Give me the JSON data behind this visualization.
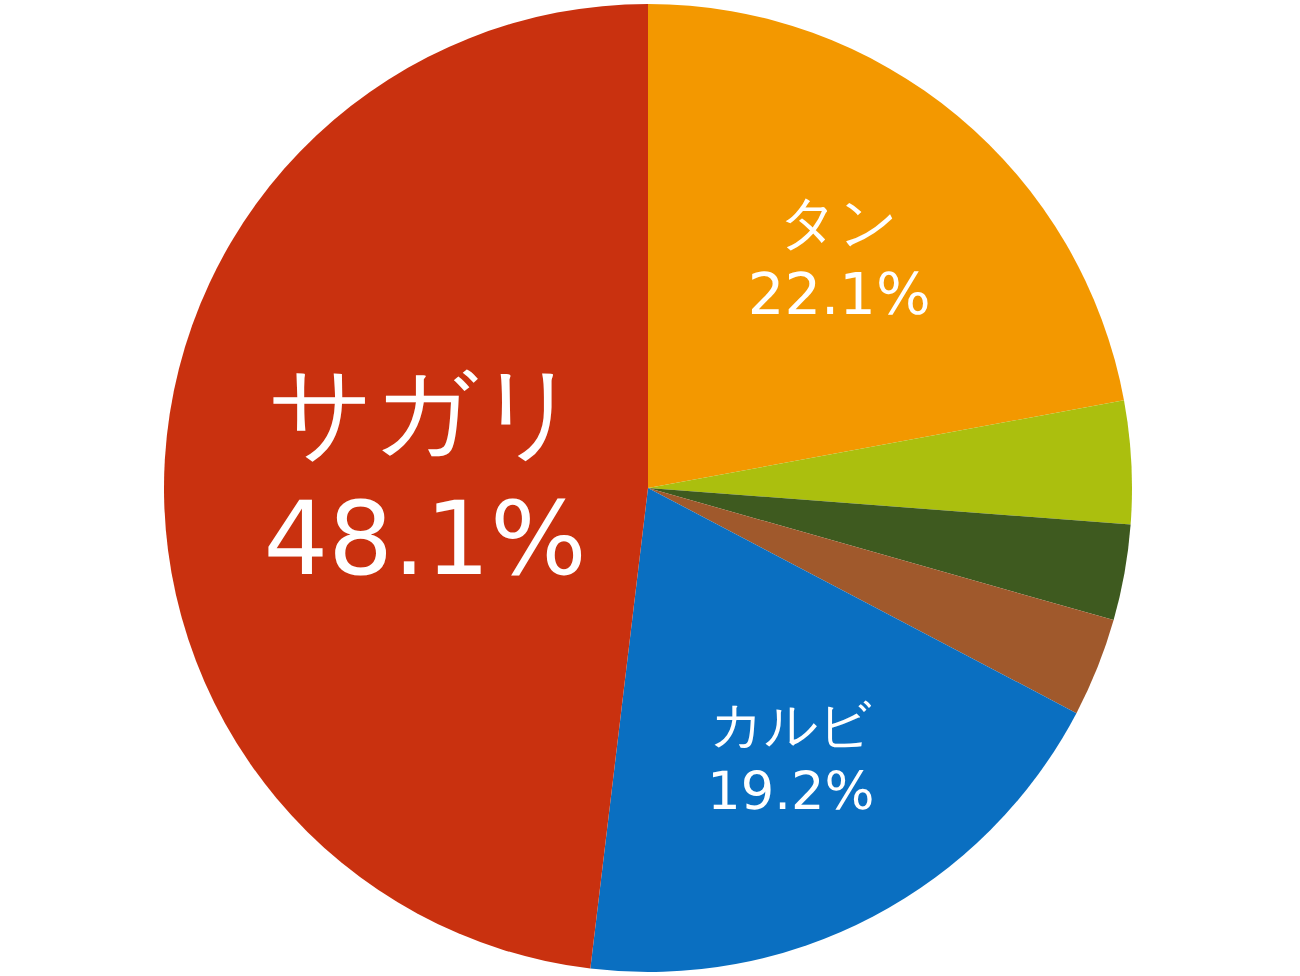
{
  "chart_data": {
    "type": "pie",
    "categories": [
      "タン",
      null,
      null,
      null,
      "カルビ",
      "サガリ"
    ],
    "values": [
      22.1,
      4.1,
      3.2,
      3.3,
      19.2,
      48.1
    ],
    "colors": [
      "#f39800",
      "#abbf0e",
      "#3e5a1f",
      "#a0592c",
      "#0a6fc1",
      "#c9310f"
    ],
    "value_labels": [
      "22.1%",
      null,
      null,
      null,
      "19.2%",
      "48.1%"
    ]
  }
}
